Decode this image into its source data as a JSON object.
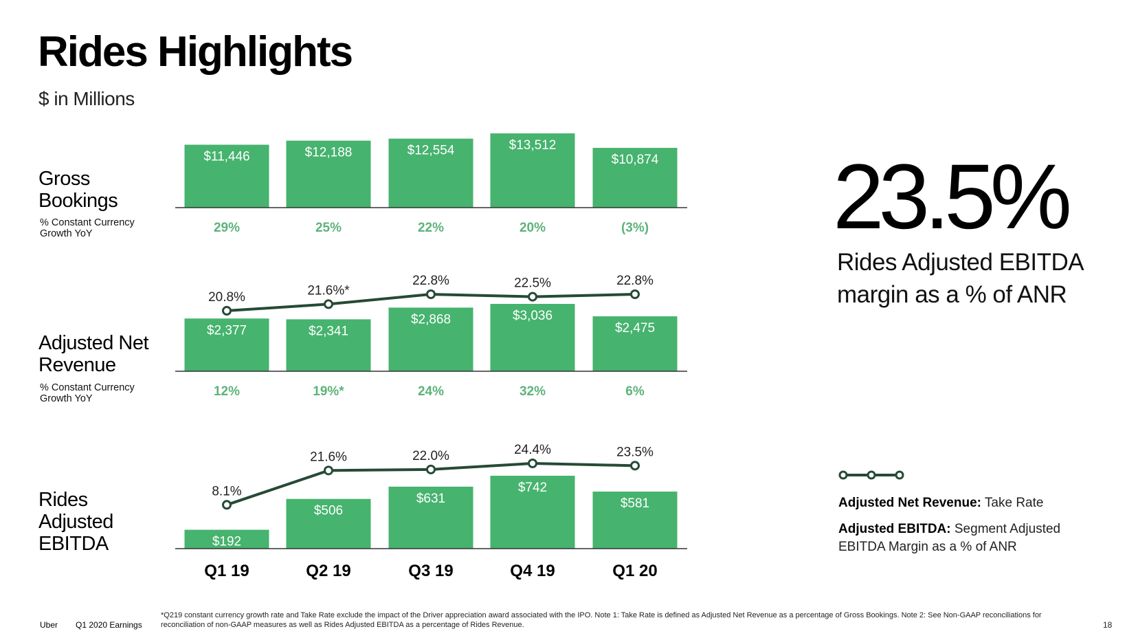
{
  "page": {
    "title": "Rides Highlights",
    "subtitle": "$ in Millions"
  },
  "rows": {
    "gross_bookings": {
      "label": "Gross Bookings",
      "sublabel": "% Constant Currency Growth YoY"
    },
    "adjusted_net_revenue": {
      "label": "Adjusted Net Revenue",
      "sublabel": "% Constant Currency Growth YoY"
    },
    "rides_adjusted_ebitda": {
      "label": "Rides Adjusted EBITDA"
    }
  },
  "highlight": {
    "value": "23.5%",
    "description": "Rides Adjusted  EBITDA margin as a % of ANR"
  },
  "legend": {
    "line1_bold": "Adjusted Net Revenue:",
    "line1_text": " Take Rate",
    "line2_bold": "Adjusted EBITDA:",
    "line2_text": " Segment Adjusted EBITDA Margin as a % of ANR"
  },
  "colors": {
    "bar": "#46b36e",
    "growth_text": "#5db37a",
    "line": "#264a36"
  },
  "footer": {
    "brand": "Uber",
    "report": "Q1 2020 Earnings",
    "footnote": "*Q219 constant currency growth rate and Take Rate exclude the impact of the Driver appreciation award associated with the IPO. Note 1: Take Rate is defined as Adjusted Net Revenue as a percentage of Gross Bookings. Note 2: See Non-GAAP reconciliations for reconciliation of non-GAAP measures as well as Rides Adjusted EBITDA as a percentage of Rides Revenue.",
    "page_number": "18"
  },
  "chart_data": [
    {
      "type": "bar",
      "categories": [
        "Q1 19",
        "Q2 19",
        "Q3 19",
        "Q4 19",
        "Q1 20"
      ],
      "title": "Gross Bookings",
      "values": [
        11446,
        12188,
        12554,
        13512,
        10874
      ],
      "value_labels": [
        "$11,446",
        "$12,188",
        "$12,554",
        "$13,512",
        "$10,874"
      ],
      "growth_labels": [
        "29%",
        "25%",
        "22%",
        "20%",
        "(3%)"
      ],
      "growth_label_name": "% Constant Currency Growth YoY"
    },
    {
      "type": "bar",
      "categories": [
        "Q1 19",
        "Q2 19",
        "Q3 19",
        "Q4 19",
        "Q1 20"
      ],
      "title": "Adjusted Net Revenue",
      "values": [
        2377,
        2341,
        2868,
        3036,
        2475
      ],
      "value_labels": [
        "$2,377",
        "$2,341",
        "$2,868",
        "$3,036",
        "$2,475"
      ],
      "growth_labels": [
        "12%",
        "19%*",
        "24%",
        "32%",
        "6%"
      ],
      "growth_label_name": "% Constant Currency Growth YoY",
      "line_series": {
        "name": "Take Rate",
        "values": [
          20.8,
          21.6,
          22.8,
          22.5,
          22.8
        ],
        "labels": [
          "20.8%",
          "21.6%*",
          "22.8%",
          "22.5%",
          "22.8%"
        ]
      }
    },
    {
      "type": "bar",
      "categories": [
        "Q1 19",
        "Q2 19",
        "Q3 19",
        "Q4 19",
        "Q1 20"
      ],
      "title": "Rides Adjusted EBITDA",
      "values": [
        192,
        506,
        631,
        742,
        581
      ],
      "value_labels": [
        "$192",
        "$506",
        "$631",
        "$742",
        "$581"
      ],
      "line_series": {
        "name": "Segment Adjusted EBITDA Margin as a % of ANR",
        "values": [
          8.1,
          21.6,
          22.0,
          24.4,
          23.5
        ],
        "labels": [
          "8.1%",
          "21.6%",
          "22.0%",
          "24.4%",
          "23.5%"
        ]
      }
    }
  ]
}
